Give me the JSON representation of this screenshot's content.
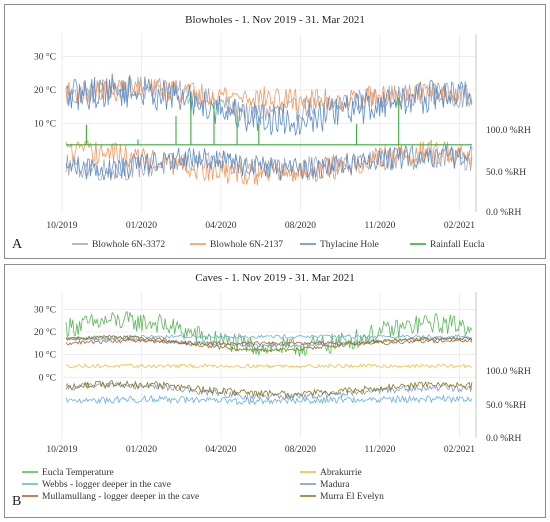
{
  "chart_data": [
    {
      "type": "line",
      "panel": "A",
      "title": "Blowholes - 1. Nov 2019 - 31. Mar 2021",
      "x_ticks": [
        "10/2019",
        "01/2020",
        "04/2020",
        "08/2020",
        "11/2020",
        "02/2021"
      ],
      "y_left_ticks": [
        "30 °C",
        "20 °C",
        "10 °C"
      ],
      "y_right_ticks": [
        "100.0 %RH",
        "50.0 %RH",
        "0.0 %RH"
      ],
      "grid": true,
      "legend_position": "bottom",
      "series": [
        {
          "name": "Blowhole 6N-3372",
          "color": "#a9a9b3",
          "temperature": [
            18,
            20,
            21,
            18,
            13,
            14,
            16,
            18,
            19,
            18
          ],
          "humidity": [
            55,
            50,
            55,
            60,
            55,
            52,
            55,
            62,
            65,
            62
          ]
        },
        {
          "name": "Blowhole 6N-2137",
          "color": "#f39a60",
          "temperature": [
            19,
            20,
            20,
            19,
            18,
            17,
            17,
            18,
            19,
            18
          ],
          "humidity": [
            72,
            70,
            60,
            50,
            45,
            48,
            52,
            65,
            72,
            70
          ]
        },
        {
          "name": "Thylacine Hole",
          "color": "#5e8fc9",
          "temperature": [
            18,
            20,
            19,
            16,
            12,
            11,
            13,
            16,
            18,
            19
          ],
          "humidity": [
            55,
            50,
            60,
            65,
            55,
            50,
            55,
            62,
            68,
            65
          ]
        },
        {
          "name": "Rainfall Eucla",
          "color": "#3aab3a",
          "values": [
            0,
            1,
            0,
            18,
            0,
            3,
            5,
            8,
            12,
            0
          ]
        }
      ]
    },
    {
      "type": "line",
      "panel": "B",
      "title": "Caves - 1. Nov 2019 - 31. Mar 2021",
      "x_ticks": [
        "10/2019",
        "01/2020",
        "04/2020",
        "08/2020",
        "11/2020",
        "02/2021"
      ],
      "y_left_ticks": [
        "30 °C",
        "20 °C",
        "10 °C",
        "0 °C"
      ],
      "y_right_ticks": [
        "100.0 %RH",
        "50.0 %RH",
        "0.0 %RH"
      ],
      "grid": true,
      "legend_position": "bottom",
      "series": [
        {
          "name": "Eucla Temperature",
          "color": "#5cb85c",
          "temperature": [
            22,
            25,
            24,
            18,
            14,
            13,
            15,
            20,
            24,
            23
          ]
        },
        {
          "name": "Abrakurrie",
          "color": "#f0c040",
          "temperature": [
            5,
            5,
            5,
            5,
            5,
            5,
            5,
            5,
            5,
            5
          ]
        },
        {
          "name": "Webbs - logger deeper in the cave",
          "color": "#6ab0e0",
          "temperature": [
            17,
            17.5,
            18,
            18,
            18,
            18,
            18,
            18,
            18,
            18
          ],
          "humidity": [
            55,
            56,
            58,
            55,
            54,
            55,
            56,
            57,
            57,
            58
          ]
        },
        {
          "name": "Madura",
          "color": "#7d9ad0",
          "temperature": [
            17,
            17,
            16,
            15,
            14,
            14,
            15,
            16,
            17,
            17
          ],
          "humidity": [
            75,
            78,
            76,
            68,
            62,
            60,
            64,
            70,
            74,
            73
          ]
        },
        {
          "name": "Mullamullang - logger deeper in the cave",
          "color": "#b06040",
          "temperature": [
            15,
            16,
            16,
            15,
            15,
            15,
            15,
            15,
            16,
            16
          ]
        },
        {
          "name": "Murra El Evelyn",
          "color": "#8a7a20",
          "temperature": [
            17,
            18,
            17,
            14,
            12,
            12,
            14,
            16,
            17,
            17
          ],
          "humidity": [
            76,
            80,
            78,
            72,
            66,
            64,
            68,
            74,
            78,
            78
          ]
        }
      ]
    }
  ]
}
